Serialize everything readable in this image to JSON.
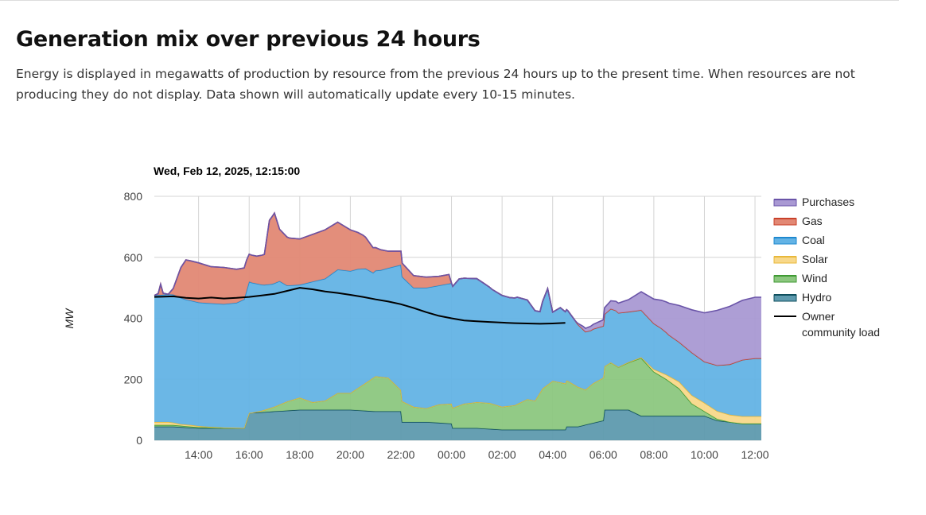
{
  "page": {
    "title": "Generation mix over previous 24 hours",
    "description": "Energy is displayed in megawatts of production by resource from the previous 24 hours up to the present time. When resources are not producing they do not display. Data shown will automatically update every 10-15 minutes."
  },
  "chart_data": {
    "type": "area",
    "title": "Wed, Feb 12, 2025, 12:15:00",
    "xlabel": "",
    "ylabel": "MW",
    "ylim": [
      0,
      800
    ],
    "yticks": [
      0,
      200,
      400,
      600,
      800
    ],
    "xlim": [
      12.25,
      36.25
    ],
    "xticks": [
      {
        "x": 14,
        "label": "14:00"
      },
      {
        "x": 16,
        "label": "16:00"
      },
      {
        "x": 18,
        "label": "18:00"
      },
      {
        "x": 20,
        "label": "20:00"
      },
      {
        "x": 22,
        "label": "22:00"
      },
      {
        "x": 24,
        "label": "00:00"
      },
      {
        "x": 26,
        "label": "02:00"
      },
      {
        "x": 28,
        "label": "04:00"
      },
      {
        "x": 30,
        "label": "06:00"
      },
      {
        "x": 32,
        "label": "08:00"
      },
      {
        "x": 34,
        "label": "10:00"
      },
      {
        "x": 36,
        "label": "12:00"
      }
    ],
    "grid": true,
    "legend_position": "right",
    "stack_order": [
      "Hydro",
      "Wind",
      "Solar",
      "Coal",
      "Gas",
      "Purchases"
    ],
    "series": [
      {
        "name": "Purchases",
        "color": "#a999d3",
        "line": "#6a54a8",
        "values": [
          [
            12.25,
            0
          ],
          [
            28.9,
            0
          ],
          [
            29.2,
            10
          ],
          [
            30,
            20
          ],
          [
            30.5,
            30
          ],
          [
            31,
            40
          ],
          [
            31.5,
            60
          ],
          [
            32,
            80
          ],
          [
            32.5,
            100
          ],
          [
            33,
            120
          ],
          [
            33.5,
            140
          ],
          [
            34,
            160
          ],
          [
            34.5,
            180
          ],
          [
            35,
            190
          ],
          [
            35.5,
            195
          ],
          [
            36,
            200
          ],
          [
            36.25,
            200
          ]
        ]
      },
      {
        "name": "Gas",
        "color": "#e28874",
        "line": "#c9412a",
        "values": [
          [
            12.25,
            0
          ],
          [
            12.4,
            5
          ],
          [
            12.5,
            35
          ],
          [
            12.6,
            5
          ],
          [
            12.8,
            0
          ],
          [
            13,
            20
          ],
          [
            13.3,
            100
          ],
          [
            13.5,
            130
          ],
          [
            14,
            130
          ],
          [
            14.5,
            120
          ],
          [
            15,
            120
          ],
          [
            15.5,
            110
          ],
          [
            15.9,
            100
          ],
          [
            16,
            90
          ],
          [
            16.3,
            90
          ],
          [
            16.6,
            100
          ],
          [
            16.8,
            210
          ],
          [
            17,
            230
          ],
          [
            17.2,
            170
          ],
          [
            17.6,
            155
          ],
          [
            18,
            150
          ],
          [
            18.5,
            155
          ],
          [
            19,
            160
          ],
          [
            19.5,
            155
          ],
          [
            20,
            135
          ],
          [
            20.5,
            110
          ],
          [
            21,
            75
          ],
          [
            21.5,
            55
          ],
          [
            22,
            45
          ],
          [
            22.5,
            40
          ],
          [
            23,
            35
          ],
          [
            23.5,
            30
          ],
          [
            23.9,
            30
          ],
          [
            24,
            0
          ],
          [
            36.25,
            0
          ]
        ]
      },
      {
        "name": "Coal",
        "color": "#63b3e5",
        "line": "#1e88cf",
        "values": [
          [
            12.25,
            415
          ],
          [
            13,
            420
          ],
          [
            13.5,
            410
          ],
          [
            14,
            405
          ],
          [
            14.5,
            405
          ],
          [
            15,
            405
          ],
          [
            15.5,
            410
          ],
          [
            16,
            430
          ],
          [
            16.3,
            420
          ],
          [
            16.6,
            410
          ],
          [
            16.9,
            405
          ],
          [
            17.2,
            405
          ],
          [
            17.5,
            380
          ],
          [
            18,
            370
          ],
          [
            18.5,
            395
          ],
          [
            19,
            400
          ],
          [
            19.5,
            405
          ],
          [
            20,
            400
          ],
          [
            20.3,
            390
          ],
          [
            20.6,
            375
          ],
          [
            20.9,
            345
          ],
          [
            21.2,
            350
          ],
          [
            21.5,
            360
          ],
          [
            22,
            410
          ],
          [
            22.5,
            390
          ],
          [
            23,
            395
          ],
          [
            23.5,
            390
          ],
          [
            24,
            395
          ],
          [
            24.3,
            415
          ],
          [
            24.6,
            410
          ],
          [
            25,
            405
          ],
          [
            25.3,
            390
          ],
          [
            25.6,
            375
          ],
          [
            26,
            365
          ],
          [
            26.3,
            355
          ],
          [
            26.6,
            350
          ],
          [
            27,
            325
          ],
          [
            27.3,
            295
          ],
          [
            27.5,
            265
          ],
          [
            27.6,
            285
          ],
          [
            27.8,
            315
          ],
          [
            28,
            225
          ],
          [
            28.3,
            245
          ],
          [
            28.6,
            230
          ],
          [
            29,
            205
          ],
          [
            29.5,
            180
          ],
          [
            30,
            170
          ],
          [
            30.5,
            180
          ],
          [
            31,
            165
          ],
          [
            31.5,
            155
          ],
          [
            32,
            150
          ],
          [
            32.3,
            145
          ],
          [
            32.6,
            135
          ],
          [
            33,
            130
          ],
          [
            33.5,
            140
          ],
          [
            34,
            135
          ],
          [
            34.5,
            150
          ],
          [
            35,
            165
          ],
          [
            35.5,
            185
          ],
          [
            36,
            190
          ],
          [
            36.25,
            190
          ]
        ]
      },
      {
        "name": "Solar",
        "color": "#f8d88a",
        "line": "#e8b83a",
        "values": [
          [
            12.25,
            10
          ],
          [
            12.8,
            10
          ],
          [
            13.3,
            5
          ],
          [
            13.7,
            5
          ],
          [
            14.3,
            3
          ],
          [
            16,
            0
          ],
          [
            30,
            0
          ],
          [
            31.5,
            2
          ],
          [
            32,
            8
          ],
          [
            32.5,
            15
          ],
          [
            33,
            22
          ],
          [
            33.5,
            28
          ],
          [
            34,
            28
          ],
          [
            34.5,
            26
          ],
          [
            35,
            24
          ],
          [
            35.5,
            24
          ],
          [
            36,
            24
          ],
          [
            36.25,
            24
          ]
        ]
      },
      {
        "name": "Wind",
        "color": "#8cc77f",
        "line": "#3f9a33",
        "values": [
          [
            12.25,
            5
          ],
          [
            13,
            5
          ],
          [
            14,
            3
          ],
          [
            15,
            0
          ],
          [
            16,
            0
          ],
          [
            16.1,
            0
          ],
          [
            16.5,
            5
          ],
          [
            17,
            15
          ],
          [
            17.5,
            30
          ],
          [
            18,
            40
          ],
          [
            18.5,
            25
          ],
          [
            19,
            30
          ],
          [
            19.5,
            55
          ],
          [
            20,
            55
          ],
          [
            20.5,
            85
          ],
          [
            21,
            115
          ],
          [
            21.5,
            110
          ],
          [
            22,
            70
          ],
          [
            22.5,
            50
          ],
          [
            23,
            45
          ],
          [
            23.5,
            60
          ],
          [
            24,
            65
          ],
          [
            24.5,
            80
          ],
          [
            25,
            85
          ],
          [
            25.5,
            85
          ],
          [
            26,
            75
          ],
          [
            26.5,
            80
          ],
          [
            27,
            100
          ],
          [
            27.3,
            95
          ],
          [
            27.6,
            135
          ],
          [
            28,
            160
          ],
          [
            28.3,
            155
          ],
          [
            28.6,
            150
          ],
          [
            29,
            130
          ],
          [
            29.3,
            115
          ],
          [
            29.6,
            130
          ],
          [
            30,
            140
          ],
          [
            30.3,
            155
          ],
          [
            30.6,
            140
          ],
          [
            31,
            155
          ],
          [
            31.5,
            190
          ],
          [
            32,
            145
          ],
          [
            32.5,
            120
          ],
          [
            33,
            90
          ],
          [
            33.5,
            40
          ],
          [
            34,
            15
          ],
          [
            34.5,
            5
          ],
          [
            35,
            0
          ],
          [
            36.25,
            0
          ]
        ]
      },
      {
        "name": "Hydro",
        "color": "#5e9aae",
        "line": "#0f4f5e",
        "values": [
          [
            12.25,
            45
          ],
          [
            13,
            45
          ],
          [
            14,
            40
          ],
          [
            15,
            40
          ],
          [
            15.8,
            40
          ],
          [
            16,
            90
          ],
          [
            16.5,
            92
          ],
          [
            17,
            95
          ],
          [
            18,
            100
          ],
          [
            19,
            100
          ],
          [
            20,
            100
          ],
          [
            21,
            95
          ],
          [
            22,
            95
          ],
          [
            22.05,
            60
          ],
          [
            23,
            60
          ],
          [
            24,
            55
          ],
          [
            24.05,
            40
          ],
          [
            25,
            40
          ],
          [
            26,
            35
          ],
          [
            27,
            35
          ],
          [
            28,
            35
          ],
          [
            28.5,
            35
          ],
          [
            28.55,
            45
          ],
          [
            29,
            45
          ],
          [
            30,
            65
          ],
          [
            30.05,
            100
          ],
          [
            31,
            100
          ],
          [
            31.5,
            80
          ],
          [
            32,
            80
          ],
          [
            33,
            80
          ],
          [
            34,
            80
          ],
          [
            34.5,
            65
          ],
          [
            35,
            60
          ],
          [
            35.5,
            55
          ],
          [
            36,
            55
          ],
          [
            36.25,
            55
          ]
        ]
      },
      {
        "name": "Owner community load",
        "color": "#000000",
        "values": [
          [
            12.25,
            470
          ],
          [
            13,
            472
          ],
          [
            13.5,
            467
          ],
          [
            14,
            465
          ],
          [
            14.5,
            468
          ],
          [
            15,
            465
          ],
          [
            15.5,
            467
          ],
          [
            16,
            470
          ],
          [
            16.5,
            475
          ],
          [
            17,
            480
          ],
          [
            17.5,
            490
          ],
          [
            18,
            500
          ],
          [
            18.5,
            495
          ],
          [
            19,
            488
          ],
          [
            19.5,
            483
          ],
          [
            20,
            477
          ],
          [
            20.5,
            470
          ],
          [
            21,
            462
          ],
          [
            21.5,
            455
          ],
          [
            22,
            446
          ],
          [
            22.5,
            434
          ],
          [
            23,
            420
          ],
          [
            23.5,
            408
          ],
          [
            24,
            400
          ],
          [
            24.5,
            393
          ],
          [
            25,
            390
          ],
          [
            25.5,
            388
          ],
          [
            26,
            386
          ],
          [
            26.5,
            384
          ],
          [
            27,
            383
          ],
          [
            27.5,
            382
          ],
          [
            28,
            383
          ],
          [
            28.5,
            385
          ]
        ]
      }
    ],
    "legend": [
      {
        "label": "Purchases",
        "color": "#a999d3",
        "line": "#6a54a8"
      },
      {
        "label": "Gas",
        "color": "#e28874",
        "line": "#c9412a"
      },
      {
        "label": "Coal",
        "color": "#63b3e5",
        "line": "#1e88cf"
      },
      {
        "label": "Solar",
        "color": "#f8d88a",
        "line": "#e8b83a"
      },
      {
        "label": "Wind",
        "color": "#8cc77f",
        "line": "#3f9a33"
      },
      {
        "label": "Hydro",
        "color": "#5e9aae",
        "line": "#0f4f5e"
      },
      {
        "label": "Owner\ncommunity load",
        "color": "#000000",
        "line": "#000000",
        "is_line": true
      }
    ]
  }
}
